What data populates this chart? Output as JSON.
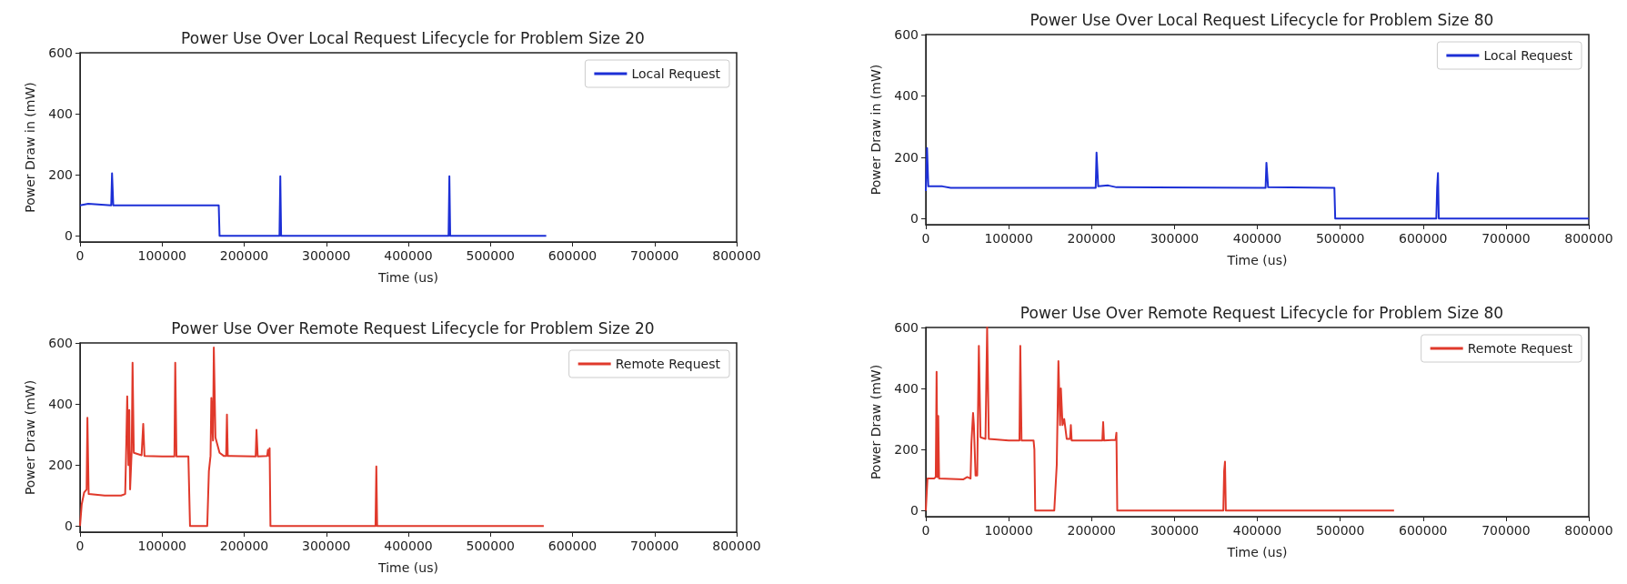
{
  "chart_data": [
    {
      "type": "line",
      "title": "Power Use Over Local Request Lifecycle for Problem Size 20",
      "xlabel": "Time (us)",
      "ylabel": "Power Draw in (mW)",
      "xlim": [
        0,
        800000
      ],
      "xticks": [
        0,
        100000,
        200000,
        300000,
        400000,
        500000,
        600000,
        700000,
        800000
      ],
      "ylim": [
        -20,
        600
      ],
      "yticks": [
        0,
        200,
        400,
        600
      ],
      "legend": "top right",
      "grid": false,
      "marker": "none",
      "series": [
        {
          "name": "Local Request",
          "color": "#1c2fd6",
          "x": [
            0,
            10000,
            38000,
            39000,
            40500,
            169000,
            170000,
            243000,
            244000,
            245000,
            449000,
            450000,
            451000,
            568000
          ],
          "values": [
            100,
            105,
            100,
            205,
            100,
            100,
            0,
            0,
            195,
            0,
            0,
            195,
            0,
            0
          ]
        }
      ]
    },
    {
      "type": "line",
      "title": "Power Use Over Local Request Lifecycle for Problem Size 80",
      "xlabel": "Time (us)",
      "ylabel": "Power Draw in (mW)",
      "xlim": [
        0,
        800000
      ],
      "xticks": [
        0,
        100000,
        200000,
        300000,
        400000,
        500000,
        600000,
        700000,
        800000
      ],
      "ylim": [
        -20,
        600
      ],
      "yticks": [
        0,
        200,
        400,
        600
      ],
      "legend": "top right",
      "grid": false,
      "marker": "none",
      "series": [
        {
          "name": "Local Request",
          "color": "#1c2fd6",
          "x": [
            0,
            1500,
            3000,
            20000,
            30000,
            205000,
            206000,
            208000,
            220000,
            230000,
            410000,
            411000,
            413000,
            493000,
            494000,
            616000,
            617000,
            618000,
            619000,
            800000
          ],
          "values": [
            90,
            230,
            105,
            105,
            100,
            100,
            215,
            105,
            108,
            102,
            100,
            182,
            102,
            100,
            0,
            0,
            100,
            148,
            0,
            0
          ]
        }
      ]
    },
    {
      "type": "line",
      "title": "Power Use Over Remote Request Lifecycle for Problem Size 20",
      "xlabel": "Time (us)",
      "ylabel": "Power Draw (mW)",
      "xlim": [
        0,
        800000
      ],
      "xticks": [
        0,
        100000,
        200000,
        300000,
        400000,
        500000,
        600000,
        700000,
        800000
      ],
      "ylim": [
        -20,
        600
      ],
      "yticks": [
        0,
        200,
        400,
        600
      ],
      "legend": "top right",
      "grid": false,
      "marker": "none",
      "series": [
        {
          "name": "Remote Request",
          "color": "#e0392b",
          "x": [
            0,
            2000,
            5000,
            8000,
            9000,
            10500,
            30000,
            50000,
            55000,
            56000,
            57500,
            59000,
            60000,
            61000,
            63000,
            64000,
            65500,
            75000,
            77000,
            78500,
            100000,
            115000,
            116000,
            117500,
            132000,
            134000,
            155000,
            157000,
            159000,
            160000,
            162000,
            163000,
            165000,
            170000,
            175000,
            178000,
            179000,
            180000,
            214000,
            215000,
            216500,
            228000,
            229000,
            230000,
            231000,
            232000,
            360000,
            361000,
            362000,
            565000
          ],
          "values": [
            0,
            70,
            110,
            120,
            355,
            105,
            100,
            100,
            105,
            220,
            425,
            200,
            380,
            120,
            250,
            535,
            240,
            232,
            335,
            230,
            228,
            228,
            535,
            228,
            228,
            0,
            0,
            180,
            230,
            420,
            280,
            585,
            290,
            240,
            230,
            230,
            365,
            230,
            228,
            315,
            228,
            230,
            250,
            230,
            255,
            0,
            0,
            195,
            0,
            0
          ]
        }
      ]
    },
    {
      "type": "line",
      "title": "Power Use Over Remote Request Lifecycle for Problem Size 80",
      "xlabel": "Time (us)",
      "ylabel": "Power Draw (mW)",
      "xlim": [
        0,
        800000
      ],
      "xticks": [
        0,
        100000,
        200000,
        300000,
        400000,
        500000,
        600000,
        700000,
        800000
      ],
      "ylim": [
        -20,
        600
      ],
      "yticks": [
        0,
        200,
        400,
        600
      ],
      "legend": "top right",
      "grid": false,
      "marker": "none",
      "series": [
        {
          "name": "Remote Request",
          "color": "#e0392b",
          "x": [
            0,
            2000,
            10000,
            12000,
            13000,
            14000,
            15000,
            16000,
            45000,
            50000,
            54000,
            55000,
            57000,
            58000,
            60000,
            62000,
            64000,
            66000,
            72000,
            74000,
            76000,
            100000,
            113000,
            114000,
            115500,
            130000,
            131000,
            132000,
            155000,
            158000,
            160000,
            162000,
            163000,
            165000,
            167000,
            170000,
            174000,
            175000,
            176000,
            213000,
            214000,
            215000,
            229000,
            230000,
            231000,
            359000,
            360000,
            361000,
            362000,
            565000
          ],
          "values": [
            0,
            105,
            105,
            110,
            455,
            110,
            310,
            105,
            102,
            110,
            105,
            220,
            320,
            280,
            115,
            115,
            540,
            240,
            235,
            600,
            235,
            230,
            230,
            540,
            230,
            230,
            200,
            0,
            0,
            150,
            490,
            280,
            400,
            280,
            300,
            235,
            235,
            280,
            230,
            230,
            290,
            230,
            232,
            255,
            0,
            0,
            130,
            160,
            0,
            0
          ]
        }
      ]
    }
  ]
}
